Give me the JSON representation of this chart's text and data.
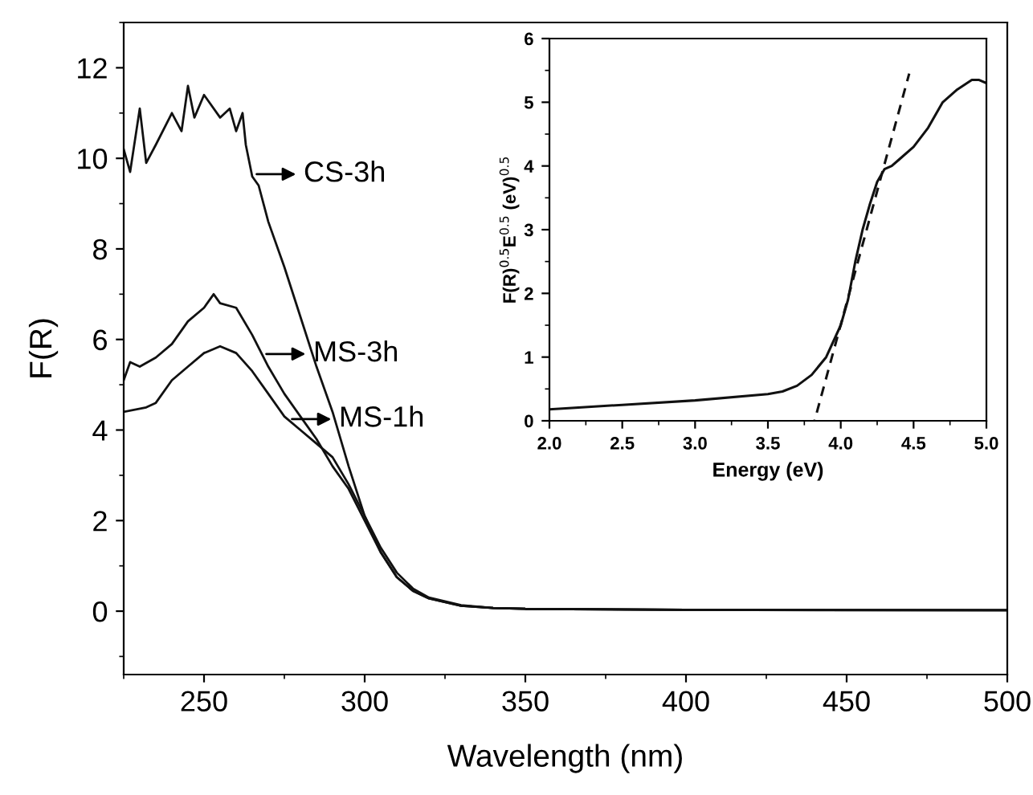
{
  "chart_data": [
    {
      "type": "line",
      "xlabel": "Wavelength (nm)",
      "ylabel": "F(R)",
      "xlim": [
        225,
        500
      ],
      "ylim": [
        -1.4,
        13
      ],
      "xticks": [
        250,
        300,
        350,
        400,
        450,
        500
      ],
      "yticks": [
        0,
        2,
        4,
        6,
        8,
        10,
        12
      ],
      "grid": false,
      "legend": false,
      "marker": "none",
      "line_style": "solid",
      "series": [
        {
          "color": "#111111",
          "x": [
            225,
            227,
            230,
            232,
            235,
            240,
            243,
            245,
            247,
            250,
            255,
            258,
            260,
            262,
            263,
            265,
            267,
            270,
            275,
            280,
            285,
            290,
            295,
            300,
            305,
            310,
            315,
            320,
            330,
            340,
            350,
            400,
            450,
            500
          ],
          "values": [
            10.2,
            9.7,
            11.1,
            9.9,
            10.3,
            11.0,
            10.6,
            11.6,
            10.9,
            11.4,
            10.9,
            11.1,
            10.6,
            11.0,
            10.3,
            9.6,
            9.4,
            8.6,
            7.6,
            6.5,
            5.4,
            4.4,
            3.2,
            2.1,
            1.3,
            0.75,
            0.45,
            0.28,
            0.12,
            0.07,
            0.05,
            0.03,
            0.02,
            0.02
          ]
        },
        {
          "color": "#111111",
          "x": [
            225,
            227,
            230,
            235,
            240,
            245,
            250,
            253,
            255,
            260,
            265,
            270,
            275,
            280,
            285,
            290,
            295,
            300,
            305,
            310,
            315,
            320,
            330,
            340,
            350,
            400,
            500
          ],
          "values": [
            5.1,
            5.5,
            5.4,
            5.6,
            5.9,
            6.4,
            6.7,
            7.0,
            6.8,
            6.7,
            6.1,
            5.4,
            4.8,
            4.3,
            3.8,
            3.2,
            2.7,
            2.0,
            1.3,
            0.75,
            0.45,
            0.28,
            0.12,
            0.07,
            0.05,
            0.03,
            0.02
          ]
        },
        {
          "color": "#111111",
          "x": [
            225,
            232,
            235,
            240,
            245,
            250,
            255,
            260,
            265,
            270,
            275,
            280,
            285,
            290,
            295,
            300,
            305,
            310,
            315,
            320,
            330,
            340,
            350,
            400,
            500
          ],
          "values": [
            4.4,
            4.5,
            4.6,
            5.1,
            5.4,
            5.7,
            5.85,
            5.7,
            5.3,
            4.8,
            4.3,
            4.0,
            3.7,
            3.4,
            2.8,
            2.1,
            1.4,
            0.85,
            0.5,
            0.3,
            0.13,
            0.07,
            0.05,
            0.03,
            0.02
          ]
        }
      ],
      "annotations": [
        {
          "text": "CS-3h",
          "x": 265,
          "y": 9.65
        },
        {
          "text": "MS-3h",
          "x": 268,
          "y": 5.68
        },
        {
          "text": "MS-1h",
          "x": 276,
          "y": 4.24
        }
      ]
    },
    {
      "type": "line",
      "xlabel": "Energy (eV)",
      "ylabel": "F(R)$^{0.5}$E$^{0.5}$ (eV)$^{0.5}$",
      "xlim": [
        2.0,
        5.0
      ],
      "ylim": [
        0,
        6
      ],
      "xticks": [
        {
          "value": 2.0,
          "label": "2.0"
        },
        {
          "value": 2.5,
          "label": "2.5"
        },
        {
          "value": 3.0,
          "label": "3.0"
        },
        {
          "value": 3.5,
          "label": "3.5"
        },
        {
          "value": 4.0,
          "label": "4.0"
        },
        {
          "value": 4.5,
          "label": "4.5"
        },
        {
          "value": 5.0,
          "label": "5.0"
        }
      ],
      "yticks": [
        0,
        1,
        2,
        3,
        4,
        5,
        6
      ],
      "grid": false,
      "legend": false,
      "marker": "none",
      "series": [
        {
          "color": "#111111",
          "line_style": "solid",
          "x": [
            2.0,
            2.5,
            3.0,
            3.5,
            3.6,
            3.7,
            3.8,
            3.9,
            4.0,
            4.05,
            4.1,
            4.15,
            4.2,
            4.25,
            4.3,
            4.35,
            4.4,
            4.5,
            4.6,
            4.7,
            4.8,
            4.9,
            4.95,
            5.0
          ],
          "values": [
            0.18,
            0.25,
            0.32,
            0.42,
            0.46,
            0.55,
            0.72,
            1.0,
            1.5,
            1.9,
            2.5,
            3.0,
            3.4,
            3.75,
            3.95,
            4.0,
            4.1,
            4.3,
            4.6,
            5.0,
            5.2,
            5.35,
            5.35,
            5.3
          ]
        },
        {
          "color": "#111111",
          "line_style": "dashed",
          "x": [
            3.82,
            4.47
          ],
          "values": [
            0,
            5.45
          ]
        }
      ]
    }
  ]
}
